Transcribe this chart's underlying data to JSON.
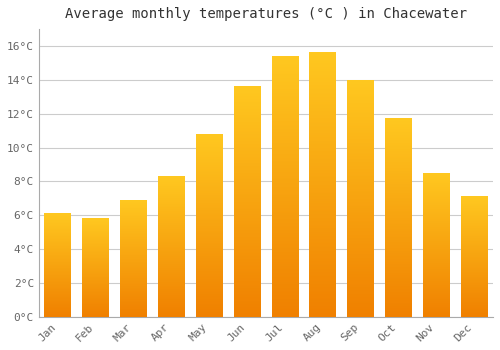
{
  "months": [
    "Jan",
    "Feb",
    "Mar",
    "Apr",
    "May",
    "Jun",
    "Jul",
    "Aug",
    "Sep",
    "Oct",
    "Nov",
    "Dec"
  ],
  "values": [
    6.1,
    5.8,
    6.9,
    8.3,
    10.8,
    13.6,
    15.4,
    15.6,
    14.0,
    11.7,
    8.5,
    7.1
  ],
  "bar_color_top": "#FFB700",
  "bar_color_bottom": "#F08000",
  "background_color": "#ffffff",
  "grid_color": "#cccccc",
  "title": "Average monthly temperatures (°C ) in Chacewater",
  "title_fontsize": 10,
  "tick_fontsize": 8,
  "ylim": [
    0,
    17
  ],
  "yticks": [
    0,
    2,
    4,
    6,
    8,
    10,
    12,
    14,
    16
  ]
}
